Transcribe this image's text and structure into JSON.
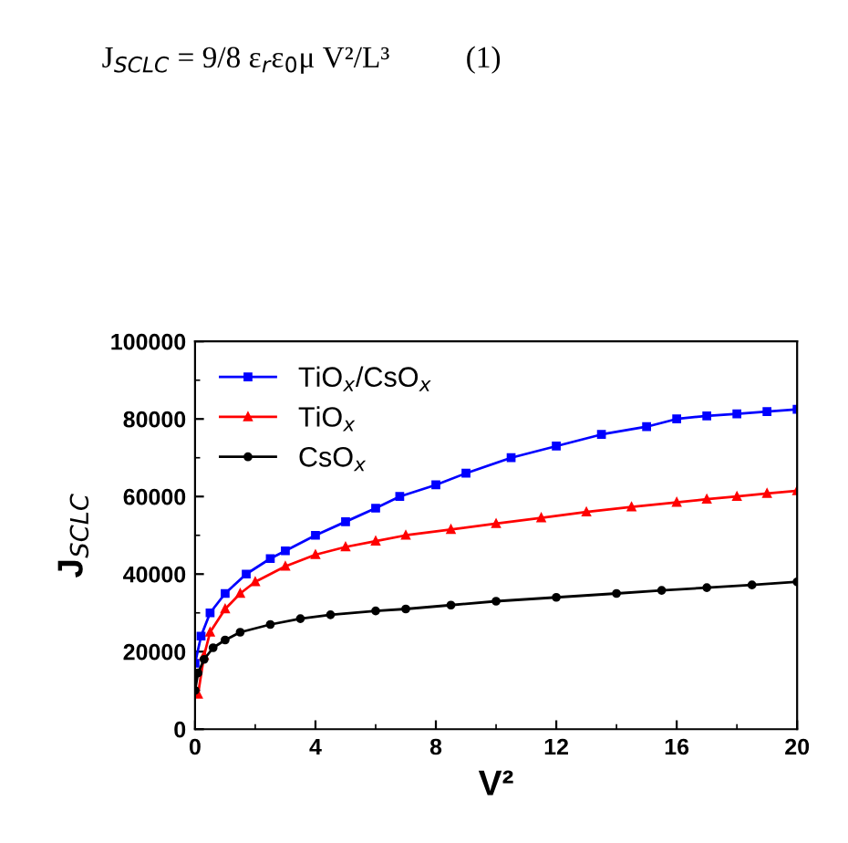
{
  "chart_data": {
    "type": "line",
    "xlabel": "V²",
    "ylabel": "J$_{SCLC}$",
    "annotations": [
      "J$_{SCLC}$ = 9/8 ε$_{r}$ε$_{0}$μ V²/L³          (1)"
    ],
    "xlim": [
      0,
      20
    ],
    "xticks": [
      0,
      4,
      8,
      12,
      16,
      20
    ],
    "ylim": [
      0,
      100000
    ],
    "yticks": [
      0,
      20000,
      40000,
      60000,
      80000,
      100000
    ],
    "grid": false,
    "legend": "top left",
    "line_style": "solid",
    "series": [
      {
        "name": "TiO$_{x}$/CsO$_{x}$",
        "color": "#0000ff",
        "marker": "square",
        "x": [
          0,
          0.2,
          0.5,
          1,
          1.7,
          2.5,
          3,
          4,
          5,
          6,
          6.8,
          8,
          9,
          10.5,
          12,
          13.5,
          15,
          16,
          17,
          18,
          19,
          20
        ],
        "values": [
          17000,
          24000,
          30000,
          35000,
          40000,
          44000,
          46000,
          50000,
          53500,
          57000,
          60000,
          63000,
          66000,
          70000,
          73000,
          76000,
          78000,
          80000,
          80800,
          81300,
          81900,
          82500
        ]
      },
      {
        "name": "TiO$_{x}$",
        "color": "#ff0000",
        "marker": "triangle",
        "x": [
          0.1,
          0.3,
          0.5,
          1,
          1.5,
          2,
          3,
          4,
          5,
          6,
          7,
          8.5,
          10,
          11.5,
          13,
          14.5,
          16,
          17,
          18,
          19,
          20
        ],
        "values": [
          9000,
          19000,
          25000,
          31000,
          35000,
          38000,
          42000,
          45000,
          47000,
          48500,
          50000,
          51500,
          53000,
          54500,
          56000,
          57300,
          58500,
          59300,
          60000,
          60800,
          61500
        ]
      },
      {
        "name": "CsO$_{x}$",
        "color": "#000000",
        "marker": "circle",
        "x": [
          0,
          0.1,
          0.3,
          0.6,
          1,
          1.5,
          2.5,
          3.5,
          4.5,
          6,
          7,
          8.5,
          10,
          12,
          14,
          15.5,
          17,
          18.5,
          20
        ],
        "values": [
          10000,
          14500,
          18000,
          21000,
          23000,
          25000,
          27000,
          28500,
          29500,
          30500,
          31000,
          32000,
          33000,
          34000,
          35000,
          35800,
          36500,
          37200,
          38000
        ]
      }
    ]
  }
}
